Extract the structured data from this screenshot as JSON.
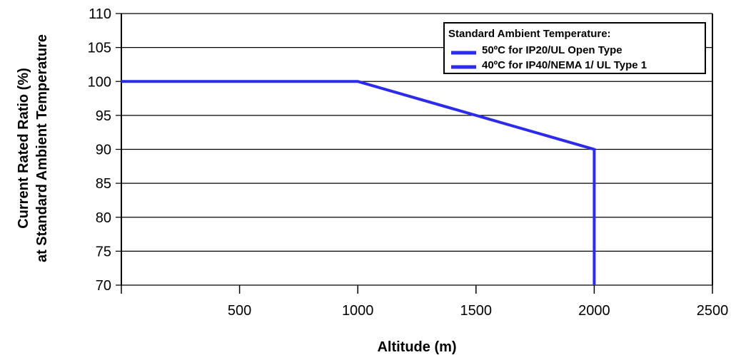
{
  "chart_data": {
    "type": "line",
    "xlabel": "Altitude (m)",
    "ylabel": [
      "Current Rated Ratio (%)",
      "at Standard Ambient Temperature"
    ],
    "xlim": [
      0,
      2500
    ],
    "ylim": [
      70,
      110
    ],
    "xticks": [
      500,
      1000,
      1500,
      2000,
      2500
    ],
    "yticks": [
      70,
      75,
      80,
      85,
      90,
      95,
      100,
      105,
      110
    ],
    "grid": "horizontal",
    "legend": {
      "placement": "top-right",
      "title": "Standard Ambient Temperature:",
      "entries": [
        "50ºC for IP20/UL Open Type",
        "40ºC for IP40/NEMA 1/ UL Type 1"
      ]
    },
    "series": [
      {
        "x": [
          0,
          1000,
          2000,
          2000
        ],
        "y": [
          100,
          100,
          90,
          70
        ],
        "color": "#2b2bf0"
      }
    ]
  }
}
